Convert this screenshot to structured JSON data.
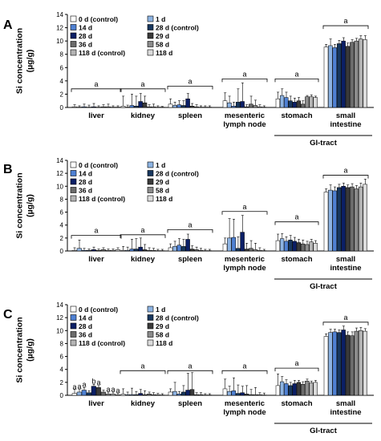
{
  "chart_data": {
    "type": "bar",
    "panels": [
      {
        "letter": "A",
        "categories": [
          "liver",
          "kidney",
          "spleen",
          "mesenteric\nlymph node",
          "stomach",
          "small\nintestine"
        ],
        "ylabel": "Si concentration\n(µg/g)",
        "ylim": [
          0,
          14
        ],
        "yticks": [
          0,
          2,
          4,
          6,
          8,
          10,
          12,
          14
        ],
        "series_names": [
          "0 d (control)",
          "1 d",
          "14 d",
          "28 d (control)",
          "28 d",
          "29 d",
          "36 d",
          "58 d",
          "118 d (control)",
          "118 d"
        ],
        "values": [
          [
            0.1,
            0.05,
            0.1,
            0.05,
            0.1,
            0.05,
            0.1,
            0.1,
            0.05,
            0.05
          ],
          [
            0.2,
            0.05,
            0.3,
            0.2,
            0.9,
            0.7,
            0.1,
            0.1,
            0.05,
            0.05
          ],
          [
            0.5,
            0.3,
            0.4,
            0.3,
            1.3,
            0.2,
            0.1,
            0.05,
            0.05,
            0.05
          ],
          [
            1.0,
            0.7,
            0.2,
            0.8,
            0.9,
            0.1,
            0.5,
            0.3,
            0.1,
            0.05
          ],
          [
            1.3,
            1.8,
            1.5,
            1.0,
            0.8,
            1.0,
            0.5,
            1.6,
            1.6,
            1.5
          ],
          [
            9.1,
            9.3,
            9.0,
            9.6,
            10.0,
            9.2,
            9.8,
            10.0,
            10.3,
            10.2
          ]
        ],
        "errors": [
          [
            0.3,
            0.2,
            0.4,
            0.3,
            0.5,
            0.2,
            0.3,
            0.4,
            0.2,
            0.2
          ],
          [
            1.5,
            0.3,
            1.7,
            1.5,
            1.2,
            1.0,
            0.3,
            0.4,
            0.2,
            0.1
          ],
          [
            0.8,
            0.5,
            0.6,
            0.7,
            0.8,
            0.4,
            0.3,
            0.2,
            0.2,
            0.2
          ],
          [
            1.2,
            1.0,
            0.6,
            2.0,
            2.8,
            0.3,
            1.2,
            0.8,
            0.3,
            0.2
          ],
          [
            1.0,
            1.0,
            0.8,
            0.7,
            0.6,
            0.5,
            0.5,
            0.2,
            0.3,
            0.2
          ],
          [
            0.4,
            1.0,
            0.5,
            0.5,
            0.5,
            0.5,
            0.4,
            0.4,
            0.5,
            0.6
          ]
        ],
        "bracket_labels": [
          "a",
          "a",
          "a",
          "a",
          "a",
          "a"
        ],
        "bracket_y": [
          2.8,
          2.8,
          3.2,
          4.3,
          4.3,
          12.3
        ],
        "extra_labels": [],
        "group_label": "GI-tract"
      },
      {
        "letter": "B",
        "categories": [
          "liver",
          "kidney",
          "spleen",
          "mesenteric\nlymph node",
          "stomach",
          "small\nintestine"
        ],
        "ylabel": "Si concentration\n(µg/g)",
        "ylim": [
          0,
          14
        ],
        "yticks": [
          0,
          2,
          4,
          6,
          8,
          10,
          12,
          14
        ],
        "series_names": [
          "0 d (control)",
          "1 d",
          "14 d",
          "28 d (control)",
          "28 d",
          "29 d",
          "36 d",
          "58 d",
          "118 d (control)",
          "118 d"
        ],
        "values": [
          [
            0.1,
            0.4,
            0.1,
            0.1,
            0.2,
            0.1,
            0.2,
            0.1,
            0.1,
            0.2
          ],
          [
            0.1,
            0.1,
            0.3,
            0.3,
            0.6,
            0.2,
            0.1,
            0.1,
            0.05,
            0.05
          ],
          [
            0.5,
            0.7,
            0.9,
            0.7,
            1.8,
            0.3,
            0.2,
            0.1,
            0.05,
            0.05
          ],
          [
            1.1,
            2.0,
            2.1,
            0.4,
            2.9,
            0.3,
            0.4,
            0.2,
            0.1,
            0.05
          ],
          [
            1.6,
            1.9,
            1.5,
            1.7,
            1.5,
            1.3,
            1.1,
            1.0,
            1.4,
            1.2
          ],
          [
            9.1,
            9.4,
            9.3,
            9.8,
            10.0,
            9.8,
            9.9,
            9.6,
            9.9,
            10.3
          ]
        ],
        "errors": [
          [
            0.4,
            1.3,
            0.3,
            0.2,
            0.4,
            0.2,
            0.3,
            0.2,
            0.2,
            0.3
          ],
          [
            0.6,
            0.5,
            1.5,
            1.6,
            1.4,
            0.8,
            0.4,
            0.3,
            0.2,
            0.2
          ],
          [
            0.6,
            0.8,
            1.0,
            1.1,
            0.8,
            0.5,
            0.4,
            0.3,
            0.2,
            0.2
          ],
          [
            0.9,
            3.0,
            2.8,
            1.8,
            2.6,
            0.9,
            1.2,
            1.0,
            0.4,
            0.2
          ],
          [
            1.0,
            0.8,
            0.7,
            0.7,
            0.6,
            0.5,
            0.6,
            0.5,
            0.4,
            0.4
          ],
          [
            0.5,
            0.8,
            0.6,
            0.5,
            0.5,
            0.4,
            0.5,
            0.5,
            0.6,
            0.8
          ]
        ],
        "bracket_labels": [
          "a",
          "a",
          "a",
          "a",
          "a",
          "a"
        ],
        "bracket_y": [
          2.4,
          2.5,
          3.3,
          6.1,
          4.5,
          11.7
        ],
        "extra_labels": [],
        "group_label": "GI-tract"
      },
      {
        "letter": "C",
        "categories": [
          "liver",
          "kidney",
          "spleen",
          "mesenteric\nlymph node",
          "stomach",
          "small\nintestine"
        ],
        "ylabel": "Si concentration\n(µg/g)",
        "ylim": [
          0,
          14
        ],
        "yticks": [
          0,
          2,
          4,
          6,
          8,
          10,
          12,
          14
        ],
        "series_names": [
          "0 d (control)",
          "1 d",
          "14 d",
          "28 d (control)",
          "28 d",
          "29 d",
          "36 d",
          "58 d",
          "118 d (control)",
          "118 d"
        ],
        "values": [
          [
            0.3,
            0.5,
            0.8,
            0.4,
            1.4,
            1.2,
            0.5,
            0.2,
            0.2,
            0.1
          ],
          [
            0.2,
            0.1,
            0.1,
            0.1,
            0.3,
            0.1,
            0.2,
            0.1,
            0.1,
            0.05
          ],
          [
            0.5,
            0.6,
            0.2,
            0.5,
            0.8,
            0.9,
            0.1,
            0.1,
            0.05,
            0.05
          ],
          [
            1.0,
            0.6,
            0.7,
            0.3,
            0.4,
            0.2,
            0.1,
            0.1,
            0.1,
            0.05
          ],
          [
            1.5,
            2.1,
            1.8,
            1.5,
            1.8,
            2.0,
            1.7,
            2.2,
            1.9,
            2.0
          ],
          [
            9.1,
            9.7,
            9.8,
            9.7,
            10.1,
            9.3,
            9.2,
            9.9,
            10.0,
            9.9
          ]
        ],
        "errors": [
          [
            0.6,
            0.4,
            0.4,
            0.3,
            0.3,
            0.3,
            0.3,
            0.3,
            0.3,
            0.2
          ],
          [
            0.8,
            0.4,
            1.0,
            0.5,
            0.6,
            0.6,
            0.3,
            0.3,
            0.2,
            0.2
          ],
          [
            0.5,
            1.4,
            0.4,
            1.0,
            2.6,
            2.6,
            0.3,
            0.3,
            0.2,
            0.2
          ],
          [
            1.5,
            0.8,
            2.0,
            1.3,
            1.0,
            1.3,
            0.8,
            1.1,
            0.3,
            0.3
          ],
          [
            1.8,
            0.8,
            0.6,
            0.5,
            0.5,
            0.3,
            0.4,
            0.3,
            0.3,
            0.3
          ],
          [
            0.4,
            0.5,
            0.4,
            0.4,
            0.6,
            0.5,
            0.6,
            0.5,
            0.5,
            0.4
          ]
        ],
        "bracket_labels": [
          "",
          "a",
          "a",
          "a",
          "a",
          "a"
        ],
        "bracket_y": [
          0,
          3.8,
          3.8,
          3.8,
          4.2,
          11.3
        ],
        "extra_labels": [
          {
            "category": 0,
            "bar": 0,
            "text": "a",
            "y": 0.9
          },
          {
            "category": 0,
            "bar": 1,
            "text": "a",
            "y": 1.0
          },
          {
            "category": 0,
            "bar": 2,
            "text": "a",
            "y": 1.3
          },
          {
            "category": 0,
            "bar": 4,
            "text": "b",
            "y": 1.8
          },
          {
            "category": 0,
            "bar": 5,
            "text": "a",
            "y": 1.6
          },
          {
            "category": 0,
            "bar": 7,
            "text": "a",
            "y": 0.55
          },
          {
            "category": 0,
            "bar": 8,
            "text": "a",
            "y": 0.55
          },
          {
            "category": 0,
            "bar": 9,
            "text": "a",
            "y": 0.4
          }
        ],
        "group_label": "GI-tract"
      }
    ],
    "colors": [
      "#ffffff",
      "#8db3e2",
      "#4f81d3",
      "#17375e",
      "#0b1f66",
      "#3a3a3a",
      "#6b6b6b",
      "#8c8c8c",
      "#b4b4b4",
      "#dcdcdc"
    ],
    "grid": false,
    "legend_placement": "top-left"
  }
}
